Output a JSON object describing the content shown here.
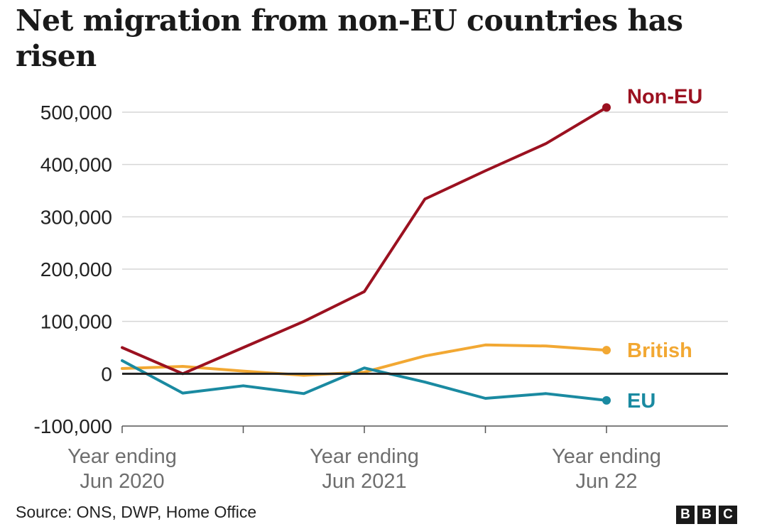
{
  "title": "Net migration from non-EU countries has risen",
  "source": "Source: ONS, DWP, Home Office",
  "logo": {
    "letters": [
      "B",
      "B",
      "C"
    ]
  },
  "colors": {
    "non_eu": "#9b1120",
    "british": "#f2a833",
    "eu": "#1a8aa1",
    "zero_line": "#222222",
    "grid": "#d6d6d6"
  },
  "chart_data": {
    "type": "line",
    "title": "Net migration from non-EU countries has risen",
    "xlabel": "",
    "ylabel": "",
    "ylim": [
      -100000,
      500000
    ],
    "yticks": [
      500000,
      400000,
      300000,
      200000,
      100000,
      0,
      -100000
    ],
    "ytick_labels": [
      "500,000",
      "400,000",
      "300,000",
      "200,000",
      "100,000",
      "0",
      "-100,000"
    ],
    "x": [
      0,
      1,
      2,
      3,
      4,
      5,
      6,
      7,
      8
    ],
    "xtick_positions": [
      0,
      4,
      8
    ],
    "xtick_labels": [
      {
        "line1": "Year ending",
        "line2": "Jun 2020"
      },
      {
        "line1": "Year ending",
        "line2": "Jun 2021"
      },
      {
        "line1": "Year ending",
        "line2": "Jun 22"
      }
    ],
    "grid": true,
    "series": [
      {
        "name": "Non-EU",
        "key": "non_eu",
        "values": [
          50000,
          0,
          50000,
          100000,
          157000,
          334000,
          388000,
          440000,
          509000
        ]
      },
      {
        "name": "British",
        "key": "british",
        "values": [
          10000,
          14000,
          5000,
          -3000,
          3000,
          34000,
          55000,
          53000,
          45000
        ]
      },
      {
        "name": "EU",
        "key": "eu",
        "values": [
          25000,
          -37000,
          -23000,
          -38000,
          11000,
          -16000,
          -47000,
          -38000,
          -51000
        ]
      }
    ]
  }
}
